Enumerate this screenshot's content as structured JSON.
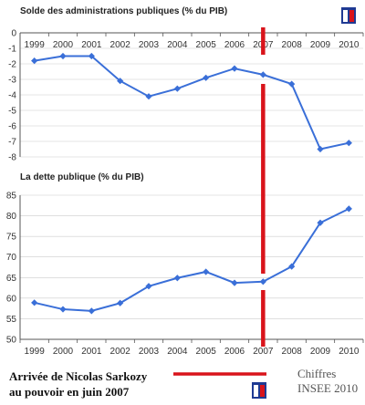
{
  "chart_data": [
    {
      "type": "line",
      "title": "Solde des administrations publiques (% du PIB)",
      "categories": [
        "1999",
        "2000",
        "2001",
        "2002",
        "2003",
        "2004",
        "2005",
        "2006",
        "2007",
        "2008",
        "2009",
        "2010"
      ],
      "values": [
        -1.8,
        -1.5,
        -1.5,
        -3.1,
        -4.1,
        -3.6,
        -2.9,
        -2.3,
        -2.7,
        -3.3,
        -7.5,
        -7.1
      ],
      "ylim": [
        -8,
        0
      ],
      "yticks": [
        0,
        -1,
        -2,
        -3,
        -4,
        -5,
        -6,
        -7,
        -8
      ],
      "grid": true
    },
    {
      "type": "line",
      "title": "La dette publique (% du PIB)",
      "categories": [
        "1999",
        "2000",
        "2001",
        "2002",
        "2003",
        "2004",
        "2005",
        "2006",
        "2007",
        "2008",
        "2009",
        "2010"
      ],
      "values": [
        58.9,
        57.3,
        56.9,
        58.8,
        62.9,
        64.9,
        66.4,
        63.7,
        64.0,
        67.7,
        78.3,
        81.7
      ],
      "ylim": [
        50,
        85
      ],
      "yticks": [
        85,
        80,
        75,
        70,
        65,
        60,
        55,
        50
      ],
      "grid": true
    }
  ],
  "marker_year": "2007",
  "annotation": {
    "line1": "Arrivée de Nicolas Sarkozy",
    "line2": "au pouvoir en juin 2007"
  },
  "source": {
    "line1": "Chiffres",
    "line2": "INSEE 2010"
  },
  "colors": {
    "series": "#3a6fd8",
    "marker_line": "#d9141b",
    "axis": "#555555",
    "grid": "#cccccc",
    "logo_blue": "#1f3a93",
    "logo_red": "#d9141b"
  }
}
